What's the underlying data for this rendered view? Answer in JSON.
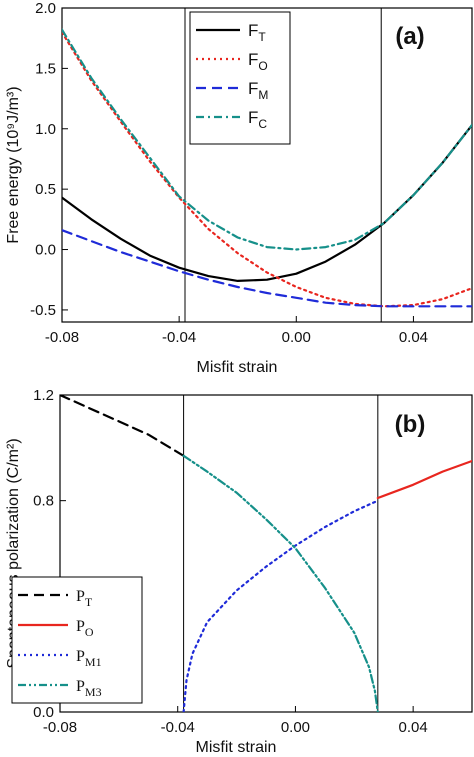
{
  "chart_data": [
    {
      "type": "line",
      "panel": "(a)",
      "xlabel": "Misfit strain",
      "ylabel": "Free energy (10⁹J/m³)",
      "xlim": [
        -0.08,
        0.06
      ],
      "ylim": [
        -0.6,
        2.0
      ],
      "xticks": [
        -0.08,
        -0.04,
        0.0,
        0.04
      ],
      "xtick_labels": [
        "-0.08",
        "-0.04",
        "0.00",
        "0.04"
      ],
      "yticks": [
        -0.5,
        0.0,
        0.5,
        1.0,
        1.5,
        2.0
      ],
      "ytick_labels": [
        "-0.5",
        "0.0",
        "0.5",
        "1.0",
        "1.5",
        "2.0"
      ],
      "vlines": [
        -0.038,
        0.029
      ],
      "legend_position": "top-center",
      "series": [
        {
          "name": "F",
          "subscript": "T",
          "color": "#000000",
          "dash": "solid",
          "x": [
            -0.08,
            -0.07,
            -0.06,
            -0.05,
            -0.04,
            -0.03,
            -0.02,
            -0.01,
            0.0,
            0.01,
            0.02,
            0.03,
            0.04,
            0.05,
            0.06
          ],
          "y": [
            0.43,
            0.25,
            0.09,
            -0.05,
            -0.15,
            -0.22,
            -0.26,
            -0.25,
            -0.2,
            -0.1,
            0.04,
            0.22,
            0.45,
            0.72,
            1.03
          ]
        },
        {
          "name": "F",
          "subscript": "O",
          "color": "#e8261f",
          "dash": "dotted",
          "x": [
            -0.08,
            -0.07,
            -0.06,
            -0.05,
            -0.04,
            -0.03,
            -0.02,
            -0.01,
            0.0,
            0.01,
            0.02,
            0.03,
            0.04,
            0.05,
            0.06
          ],
          "y": [
            1.8,
            1.4,
            1.06,
            0.73,
            0.43,
            0.17,
            -0.03,
            -0.19,
            -0.31,
            -0.4,
            -0.45,
            -0.47,
            -0.46,
            -0.41,
            -0.32
          ]
        },
        {
          "name": "F",
          "subscript": "M",
          "color": "#1f2bd8",
          "dash": "dashed",
          "x": [
            -0.08,
            -0.07,
            -0.06,
            -0.05,
            -0.04,
            -0.03,
            -0.02,
            -0.01,
            0.0,
            0.01,
            0.02,
            0.03,
            0.04,
            0.05,
            0.06
          ],
          "y": [
            0.16,
            0.07,
            -0.02,
            -0.1,
            -0.18,
            -0.25,
            -0.31,
            -0.36,
            -0.4,
            -0.44,
            -0.46,
            -0.47,
            -0.47,
            -0.47,
            -0.47
          ]
        },
        {
          "name": "F",
          "subscript": "C",
          "color": "#16908a",
          "dash": "dashdot",
          "x": [
            -0.08,
            -0.07,
            -0.06,
            -0.05,
            -0.04,
            -0.03,
            -0.02,
            -0.01,
            0.0,
            0.01,
            0.02,
            0.03,
            0.04,
            0.05,
            0.06
          ],
          "y": [
            1.82,
            1.42,
            1.08,
            0.76,
            0.44,
            0.24,
            0.1,
            0.02,
            0.0,
            0.02,
            0.08,
            0.22,
            0.45,
            0.72,
            1.03
          ]
        }
      ]
    },
    {
      "type": "line",
      "panel": "(b)",
      "xlabel": "Misfit strain",
      "ylabel": "Spontaneous polarization (C/m²)",
      "xlim": [
        -0.08,
        0.06
      ],
      "ylim": [
        0.0,
        1.2
      ],
      "xticks": [
        -0.08,
        -0.04,
        0.0,
        0.04
      ],
      "xtick_labels": [
        "-0.08",
        "-0.04",
        "0.00",
        "0.04"
      ],
      "yticks": [
        0.0,
        0.4,
        0.8,
        1.2
      ],
      "ytick_labels": [
        "0.0",
        "0.4",
        "0.8",
        "1.2"
      ],
      "vlines": [
        -0.038,
        0.028
      ],
      "legend_position": "bottom-left",
      "series": [
        {
          "name": "P",
          "subscript": "T",
          "color": "#000000",
          "dash": "dashed",
          "x": [
            -0.08,
            -0.07,
            -0.06,
            -0.05,
            -0.038
          ],
          "y": [
            1.2,
            1.15,
            1.1,
            1.05,
            0.97
          ]
        },
        {
          "name": "P",
          "subscript": "O",
          "color": "#e8261f",
          "dash": "solid",
          "x": [
            0.028,
            0.04,
            0.05,
            0.06
          ],
          "y": [
            0.81,
            0.86,
            0.91,
            0.95
          ]
        },
        {
          "name": "P",
          "subscript": "M1",
          "color": "#1f2bd8",
          "dash": "dotted",
          "x": [
            -0.038,
            -0.037,
            -0.035,
            -0.03,
            -0.02,
            -0.01,
            0.0,
            0.01,
            0.02,
            0.028
          ],
          "y": [
            0.0,
            0.12,
            0.22,
            0.34,
            0.46,
            0.55,
            0.63,
            0.7,
            0.76,
            0.8
          ]
        },
        {
          "name": "P",
          "subscript": "M3",
          "color": "#16908a",
          "dash": "dashdotdot",
          "x": [
            -0.038,
            -0.03,
            -0.02,
            -0.01,
            0.0,
            0.01,
            0.02,
            0.025,
            0.027,
            0.028
          ],
          "y": [
            0.97,
            0.91,
            0.83,
            0.73,
            0.62,
            0.47,
            0.3,
            0.17,
            0.08,
            0.0
          ]
        }
      ]
    }
  ]
}
